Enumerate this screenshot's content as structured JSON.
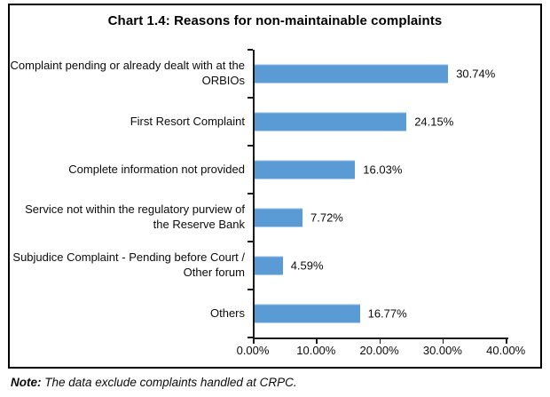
{
  "chart_data": {
    "type": "bar",
    "orientation": "horizontal",
    "title": "Chart 1.4: Reasons for non-maintainable complaints",
    "categories": [
      "Complaint pending or already dealt with at the ORBIOs",
      "First Resort Complaint",
      "Complete information not provided",
      "Service not within the regulatory purview of the Reserve Bank",
      "Subjudice Complaint -  Pending before Court / Other forum",
      "Others"
    ],
    "values": [
      30.74,
      24.15,
      16.03,
      7.72,
      4.59,
      16.77
    ],
    "value_labels": [
      "30.74%",
      "24.15%",
      "16.03%",
      "7.72%",
      "4.59%",
      "16.77%"
    ],
    "xlabel": "",
    "ylabel": "",
    "xlim": [
      0,
      40
    ],
    "x_tick_values": [
      0,
      10,
      20,
      30,
      40
    ],
    "x_tick_labels": [
      "0.00%",
      "10.00%",
      "20.00%",
      "30.00%",
      "40.00%"
    ],
    "bar_color": "#5B9BD5",
    "axis_color": "#1a1a1a",
    "grid": false,
    "legend": "none"
  },
  "note": {
    "label": "Note:",
    "text": " The data exclude complaints handled at CRPC."
  }
}
